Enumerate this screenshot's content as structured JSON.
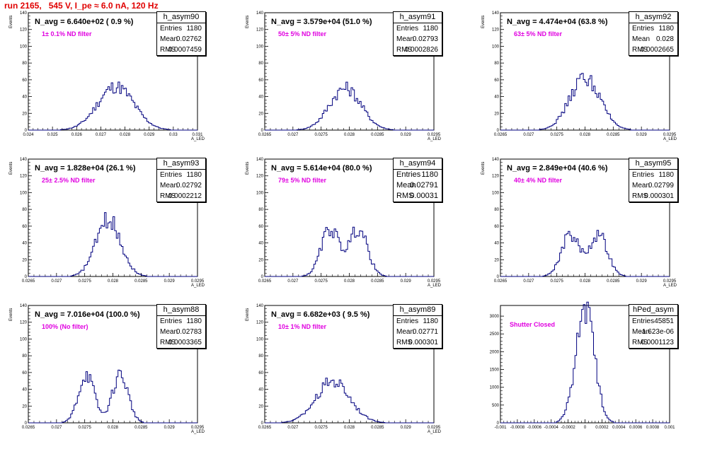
{
  "page_title": "run 2165,   545 V, I_pe ≈ 6.0 nA, 120 Hz",
  "colors": {
    "title": "#e00000",
    "note": "#e000e0",
    "histogram": "#00007f"
  },
  "chart_data": [
    {
      "type": "histogram",
      "name": "h_asym90",
      "entries": "1180",
      "mean": "0.02762",
      "rms": "0.0007459",
      "navg": "N_avg = 6.640e+02 ( 0.9 %)",
      "note": "1± 0.1% ND filter",
      "ylabel": "Events",
      "xlabel": "A_LED",
      "xlim": [
        0.024,
        0.031
      ],
      "ylim": [
        0,
        140
      ],
      "yticks": [
        "0",
        "20",
        "40",
        "60",
        "80",
        "100",
        "120",
        "140"
      ],
      "xticks": [
        "0.024",
        "0.025",
        "0.026",
        "0.027",
        "0.028",
        "0.029",
        "0.03",
        "0.031"
      ],
      "peak": 52,
      "modes": [
        {
          "center": 0.02762,
          "sigma": 0.00075,
          "weight": 1
        }
      ]
    },
    {
      "type": "histogram",
      "name": "h_asym91",
      "entries": "1180",
      "mean": "0.02793",
      "rms": "0.0002826",
      "navg": "N_avg = 3.579e+04 (51.0 %)",
      "note": "50± 5% ND filter",
      "ylabel": "Events",
      "xlabel": "A_LED",
      "xlim": [
        0.0265,
        0.0295
      ],
      "ylim": [
        0,
        140
      ],
      "yticks": [
        "0",
        "20",
        "40",
        "60",
        "80",
        "100",
        "120",
        "140"
      ],
      "xticks": [
        "0.0265",
        "0.027",
        "0.0275",
        "0.028",
        "0.0285",
        "0.029",
        "0.0295"
      ],
      "peak": 50,
      "modes": [
        {
          "center": 0.02793,
          "sigma": 0.00028,
          "weight": 1
        }
      ]
    },
    {
      "type": "histogram",
      "name": "h_asym92",
      "entries": "1180",
      "mean": "0.028",
      "rms": "0.0002665",
      "navg": "N_avg = 4.474e+04 (63.8 %)",
      "note": "63± 5% ND filter",
      "ylabel": "Events",
      "xlabel": "A_LED",
      "xlim": [
        0.0265,
        0.0295
      ],
      "ylim": [
        0,
        140
      ],
      "yticks": [
        "0",
        "20",
        "40",
        "60",
        "80",
        "100",
        "120",
        "140"
      ],
      "xticks": [
        "0.0265",
        "0.027",
        "0.0275",
        "0.028",
        "0.0285",
        "0.029",
        "0.0295"
      ],
      "peak": 62,
      "modes": [
        {
          "center": 0.028,
          "sigma": 0.00027,
          "weight": 1
        }
      ]
    },
    {
      "type": "histogram",
      "name": "h_asym93",
      "entries": "1180",
      "mean": "0.02792",
      "rms": "0.0002212",
      "navg": "N_avg = 1.828e+04 (26.1 %)",
      "note": "25± 2.5% ND filter",
      "ylabel": "Events",
      "xlabel": "A_LED",
      "xlim": [
        0.0265,
        0.0295
      ],
      "ylim": [
        0,
        140
      ],
      "yticks": [
        "0",
        "20",
        "40",
        "60",
        "80",
        "100",
        "120",
        "140"
      ],
      "xticks": [
        "0.0265",
        "0.027",
        "0.0275",
        "0.028",
        "0.0285",
        "0.029",
        "0.0295"
      ],
      "peak": 68,
      "modes": [
        {
          "center": 0.02792,
          "sigma": 0.00022,
          "weight": 1
        }
      ]
    },
    {
      "type": "histogram",
      "name": "h_asym94",
      "entries": "1180",
      "mean": "0.02791",
      "rms": "0.00031",
      "navg": "N_avg = 5.614e+04 (80.0 %)",
      "note": "79± 5% ND filter",
      "big": true,
      "ylabel": "Events",
      "xlabel": "A_LED",
      "xlim": [
        0.0265,
        0.0295
      ],
      "ylim": [
        0,
        140
      ],
      "yticks": [
        "0",
        "20",
        "40",
        "60",
        "80",
        "100",
        "120",
        "140"
      ],
      "xticks": [
        "0.0265",
        "0.027",
        "0.0275",
        "0.028",
        "0.0285",
        "0.029",
        "0.0295"
      ],
      "peak": 57,
      "modes": [
        {
          "center": 0.02766,
          "sigma": 0.00016,
          "weight": 1
        },
        {
          "center": 0.02816,
          "sigma": 0.00016,
          "weight": 1
        }
      ]
    },
    {
      "type": "histogram",
      "name": "h_asym95",
      "entries": "1180",
      "mean": "0.02799",
      "rms": "0.000301",
      "navg": "N_avg = 2.849e+04 (40.6 %)",
      "note": "40± 4% ND filter",
      "ylabel": "Events",
      "xlabel": "A_LED",
      "xlim": [
        0.0265,
        0.0295
      ],
      "ylim": [
        0,
        140
      ],
      "yticks": [
        "0",
        "20",
        "40",
        "60",
        "80",
        "100",
        "120",
        "140"
      ],
      "xticks": [
        "0.0265",
        "0.027",
        "0.0275",
        "0.028",
        "0.0285",
        "0.029",
        "0.0295"
      ],
      "peak": 50,
      "modes": [
        {
          "center": 0.02774,
          "sigma": 0.00016,
          "weight": 1
        },
        {
          "center": 0.02824,
          "sigma": 0.00016,
          "weight": 1
        }
      ]
    },
    {
      "type": "histogram",
      "name": "h_asym88",
      "entries": "1180",
      "mean": "0.02783",
      "rms": "0.0003365",
      "navg": "N_avg = 7.016e+04 (100.0 %)",
      "note": "100% (No filter)",
      "ylabel": "Events",
      "xlabel": "A_LED",
      "xlim": [
        0.0265,
        0.0295
      ],
      "ylim": [
        0,
        140
      ],
      "yticks": [
        "0",
        "20",
        "40",
        "60",
        "80",
        "100",
        "120",
        "140"
      ],
      "xticks": [
        "0.0265",
        "0.027",
        "0.0275",
        "0.028",
        "0.0285",
        "0.029",
        "0.0295"
      ],
      "peak": 58,
      "modes": [
        {
          "center": 0.02753,
          "sigma": 0.00014,
          "weight": 1
        },
        {
          "center": 0.02813,
          "sigma": 0.00014,
          "weight": 1
        }
      ]
    },
    {
      "type": "histogram",
      "name": "h_asym89",
      "entries": "1180",
      "mean": "0.02771",
      "rms": "0.000301",
      "navg": "N_avg = 6.682e+03 ( 9.5 %)",
      "note": "10± 1% ND filter",
      "ylabel": "Events",
      "xlabel": "A_LED",
      "xlim": [
        0.0265,
        0.0295
      ],
      "ylim": [
        0,
        140
      ],
      "yticks": [
        "0",
        "20",
        "40",
        "60",
        "80",
        "100",
        "120",
        "140"
      ],
      "xticks": [
        "0.0265",
        "0.027",
        "0.0275",
        "0.028",
        "0.0285",
        "0.029",
        "0.0295"
      ],
      "peak": 50,
      "modes": [
        {
          "center": 0.02771,
          "sigma": 0.0003,
          "weight": 1
        }
      ]
    },
    {
      "type": "histogram",
      "name": "hPed_asym",
      "entries": "45851",
      "mean": "-1.623e-06",
      "rms": "0.0001123",
      "navg": "",
      "note": "Shutter Closed",
      "ylabel": "",
      "xlabel": "",
      "xlim": [
        -0.001,
        0.001
      ],
      "ylim": [
        0,
        3300
      ],
      "yticks": [
        "0",
        "500",
        "1000",
        "1500",
        "2000",
        "2500",
        "3000"
      ],
      "xticks": [
        "-0.001",
        "-0.0008",
        "-0.0006",
        "-0.0004",
        "-0.0002",
        "0",
        "0.0002",
        "0.0004",
        "0.0006",
        "0.0008",
        "0.001"
      ],
      "peak": 3200,
      "modes": [
        {
          "center": 0.0,
          "sigma": 0.00011,
          "weight": 1
        }
      ]
    }
  ]
}
